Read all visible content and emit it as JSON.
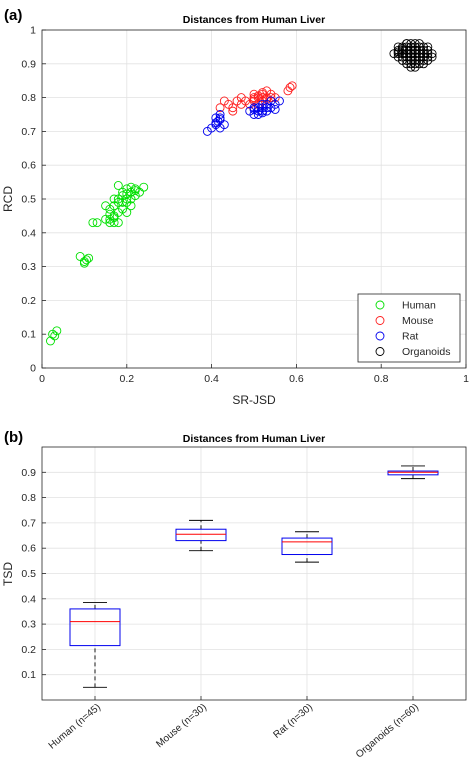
{
  "figure": {
    "panel_a_label": "(a)",
    "panel_b_label": "(b)"
  },
  "chart_data": [
    {
      "type": "scatter",
      "title": "Distances from Human Liver",
      "xlabel": "SR-JSD",
      "ylabel": "RCD",
      "xlim": [
        0,
        1
      ],
      "ylim": [
        0,
        1
      ],
      "xticks": [
        "0",
        "0.2",
        "0.4",
        "0.6",
        "0.8",
        "1"
      ],
      "yticks": [
        "0",
        "0.1",
        "0.2",
        "0.3",
        "0.4",
        "0.5",
        "0.6",
        "0.7",
        "0.8",
        "0.9",
        "1"
      ],
      "grid": true,
      "legend_position": "bottom-right",
      "marker": "open-circle",
      "series": [
        {
          "name": "Human",
          "color": "#00e000",
          "points": [
            [
              0.02,
              0.08
            ],
            [
              0.025,
              0.1
            ],
            [
              0.03,
              0.095
            ],
            [
              0.035,
              0.11
            ],
            [
              0.09,
              0.33
            ],
            [
              0.1,
              0.31
            ],
            [
              0.105,
              0.32
            ],
            [
              0.11,
              0.325
            ],
            [
              0.1,
              0.315
            ],
            [
              0.12,
              0.43
            ],
            [
              0.13,
              0.43
            ],
            [
              0.15,
              0.44
            ],
            [
              0.16,
              0.44
            ],
            [
              0.17,
              0.43
            ],
            [
              0.18,
              0.43
            ],
            [
              0.15,
              0.48
            ],
            [
              0.16,
              0.47
            ],
            [
              0.17,
              0.45
            ],
            [
              0.17,
              0.5
            ],
            [
              0.18,
              0.46
            ],
            [
              0.18,
              0.49
            ],
            [
              0.19,
              0.47
            ],
            [
              0.19,
              0.51
            ],
            [
              0.2,
              0.53
            ],
            [
              0.2,
              0.5
            ],
            [
              0.21,
              0.52
            ],
            [
              0.21,
              0.48
            ],
            [
              0.22,
              0.53
            ],
            [
              0.22,
              0.51
            ],
            [
              0.23,
              0.52
            ],
            [
              0.24,
              0.535
            ],
            [
              0.18,
              0.54
            ],
            [
              0.19,
              0.52
            ],
            [
              0.2,
              0.46
            ],
            [
              0.21,
              0.5
            ],
            [
              0.17,
              0.48
            ],
            [
              0.16,
              0.455
            ],
            [
              0.22,
              0.525
            ],
            [
              0.19,
              0.49
            ],
            [
              0.2,
              0.515
            ],
            [
              0.18,
              0.5
            ],
            [
              0.21,
              0.535
            ],
            [
              0.17,
              0.445
            ],
            [
              0.2,
              0.49
            ],
            [
              0.16,
              0.43
            ]
          ]
        },
        {
          "name": "Mouse",
          "color": "#ff2020",
          "points": [
            [
              0.42,
              0.77
            ],
            [
              0.43,
              0.79
            ],
            [
              0.44,
              0.78
            ],
            [
              0.45,
              0.76
            ],
            [
              0.46,
              0.79
            ],
            [
              0.47,
              0.8
            ],
            [
              0.48,
              0.79
            ],
            [
              0.5,
              0.79
            ],
            [
              0.5,
              0.81
            ],
            [
              0.51,
              0.8
            ],
            [
              0.51,
              0.78
            ],
            [
              0.52,
              0.81
            ],
            [
              0.52,
              0.79
            ],
            [
              0.53,
              0.8
            ],
            [
              0.53,
              0.82
            ],
            [
              0.54,
              0.81
            ],
            [
              0.55,
              0.8
            ],
            [
              0.58,
              0.82
            ],
            [
              0.585,
              0.83
            ],
            [
              0.59,
              0.835
            ],
            [
              0.49,
              0.78
            ],
            [
              0.5,
              0.8
            ],
            [
              0.52,
              0.815
            ],
            [
              0.51,
              0.805
            ],
            [
              0.53,
              0.795
            ],
            [
              0.54,
              0.8
            ],
            [
              0.5,
              0.795
            ],
            [
              0.52,
              0.8
            ],
            [
              0.45,
              0.77
            ],
            [
              0.47,
              0.78
            ]
          ]
        },
        {
          "name": "Rat",
          "color": "#0000ee",
          "points": [
            [
              0.39,
              0.7
            ],
            [
              0.4,
              0.71
            ],
            [
              0.41,
              0.72
            ],
            [
              0.415,
              0.73
            ],
            [
              0.42,
              0.74
            ],
            [
              0.43,
              0.72
            ],
            [
              0.42,
              0.71
            ],
            [
              0.41,
              0.74
            ],
            [
              0.42,
              0.75
            ],
            [
              0.49,
              0.76
            ],
            [
              0.5,
              0.75
            ],
            [
              0.51,
              0.77
            ],
            [
              0.52,
              0.76
            ],
            [
              0.53,
              0.78
            ],
            [
              0.54,
              0.79
            ],
            [
              0.55,
              0.78
            ],
            [
              0.56,
              0.79
            ],
            [
              0.5,
              0.77
            ],
            [
              0.51,
              0.75
            ],
            [
              0.52,
              0.77
            ],
            [
              0.53,
              0.76
            ],
            [
              0.52,
              0.755
            ],
            [
              0.54,
              0.77
            ],
            [
              0.5,
              0.765
            ],
            [
              0.51,
              0.76
            ],
            [
              0.53,
              0.77
            ],
            [
              0.41,
              0.725
            ],
            [
              0.42,
              0.735
            ],
            [
              0.55,
              0.765
            ],
            [
              0.52,
              0.78
            ]
          ]
        },
        {
          "name": "Organoids",
          "color": "#000000",
          "points": [
            [
              0.83,
              0.93
            ],
            [
              0.84,
              0.94
            ],
            [
              0.84,
              0.92
            ],
            [
              0.85,
              0.95
            ],
            [
              0.85,
              0.93
            ],
            [
              0.85,
              0.91
            ],
            [
              0.86,
              0.96
            ],
            [
              0.86,
              0.94
            ],
            [
              0.86,
              0.92
            ],
            [
              0.86,
              0.9
            ],
            [
              0.87,
              0.95
            ],
            [
              0.87,
              0.93
            ],
            [
              0.87,
              0.91
            ],
            [
              0.87,
              0.89
            ],
            [
              0.88,
              0.96
            ],
            [
              0.88,
              0.94
            ],
            [
              0.88,
              0.92
            ],
            [
              0.88,
              0.9
            ],
            [
              0.89,
              0.95
            ],
            [
              0.89,
              0.93
            ],
            [
              0.89,
              0.91
            ],
            [
              0.9,
              0.94
            ],
            [
              0.9,
              0.92
            ],
            [
              0.9,
              0.9
            ],
            [
              0.91,
              0.93
            ],
            [
              0.91,
              0.95
            ],
            [
              0.91,
              0.91
            ],
            [
              0.92,
              0.92
            ],
            [
              0.84,
              0.935
            ],
            [
              0.85,
              0.945
            ],
            [
              0.86,
              0.93
            ],
            [
              0.87,
              0.94
            ],
            [
              0.88,
              0.93
            ],
            [
              0.89,
              0.94
            ],
            [
              0.9,
              0.93
            ],
            [
              0.87,
              0.92
            ],
            [
              0.88,
              0.95
            ],
            [
              0.86,
              0.95
            ],
            [
              0.89,
              0.92
            ],
            [
              0.85,
              0.92
            ],
            [
              0.87,
              0.96
            ],
            [
              0.88,
              0.91
            ],
            [
              0.9,
              0.95
            ],
            [
              0.86,
              0.91
            ],
            [
              0.84,
              0.93
            ],
            [
              0.91,
              0.92
            ],
            [
              0.87,
              0.93
            ],
            [
              0.88,
              0.94
            ],
            [
              0.85,
              0.94
            ],
            [
              0.89,
              0.9
            ],
            [
              0.86,
              0.96
            ],
            [
              0.9,
              0.91
            ],
            [
              0.87,
              0.9
            ],
            [
              0.88,
              0.89
            ],
            [
              0.89,
              0.96
            ],
            [
              0.85,
              0.93
            ],
            [
              0.86,
              0.94
            ],
            [
              0.91,
              0.94
            ],
            [
              0.92,
              0.93
            ],
            [
              0.84,
              0.95
            ]
          ]
        }
      ]
    },
    {
      "type": "box",
      "title": "Distances from Human Liver",
      "xlabel": "",
      "ylabel": "TSD",
      "ylim": [
        0,
        1
      ],
      "yticks": [
        "0.1",
        "0.2",
        "0.3",
        "0.4",
        "0.5",
        "0.6",
        "0.7",
        "0.8",
        "0.9"
      ],
      "grid": true,
      "categories": [
        "Human (n=45)",
        "Mouse (n=30)",
        "Rat (n=30)",
        "Organoids (n=60)"
      ],
      "boxes": [
        {
          "whisker_low": 0.05,
          "q1": 0.215,
          "median": 0.31,
          "q3": 0.36,
          "whisker_high": 0.385
        },
        {
          "whisker_low": 0.59,
          "q1": 0.63,
          "median": 0.655,
          "q3": 0.675,
          "whisker_high": 0.71
        },
        {
          "whisker_low": 0.545,
          "q1": 0.575,
          "median": 0.625,
          "q3": 0.64,
          "whisker_high": 0.665
        },
        {
          "whisker_low": 0.875,
          "q1": 0.89,
          "median": 0.9,
          "q3": 0.905,
          "whisker_high": 0.925
        }
      ],
      "box_color": "#0000ee",
      "median_color": "#ff0000",
      "whisker_color": "#000000"
    }
  ]
}
